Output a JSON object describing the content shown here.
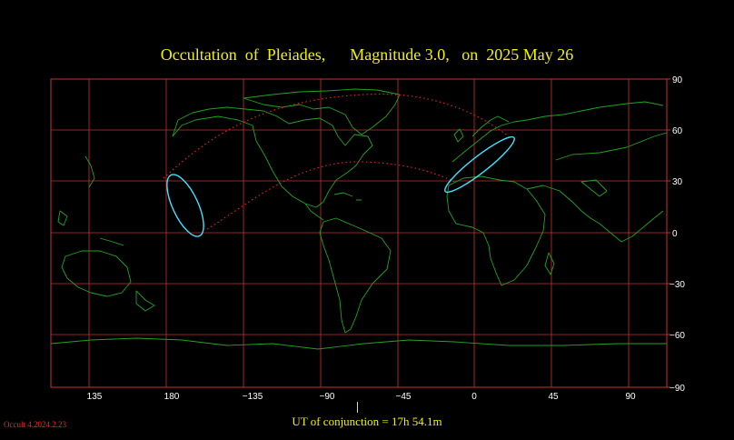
{
  "title": "Occultation  of  Pleiades,      Magnitude 3.0,   on  2025 May 26",
  "footer": "UT of conjunction = 17h 54.1m",
  "version": "Occult 4.2024.2.23",
  "axes": {
    "x_ticks": [
      "135",
      "180",
      "−135",
      "−90",
      "−45",
      "0",
      "45",
      "90"
    ],
    "y_ticks": [
      "90",
      "60",
      "30",
      "0",
      "−30",
      "−60",
      "−90"
    ]
  },
  "colors": {
    "background": "#000000",
    "grid": "#c8302f",
    "coastline": "#1fa51f",
    "title": "#f2f200",
    "path_limit": "#e02020",
    "visibility_ellipse": "#40e0ff"
  }
}
